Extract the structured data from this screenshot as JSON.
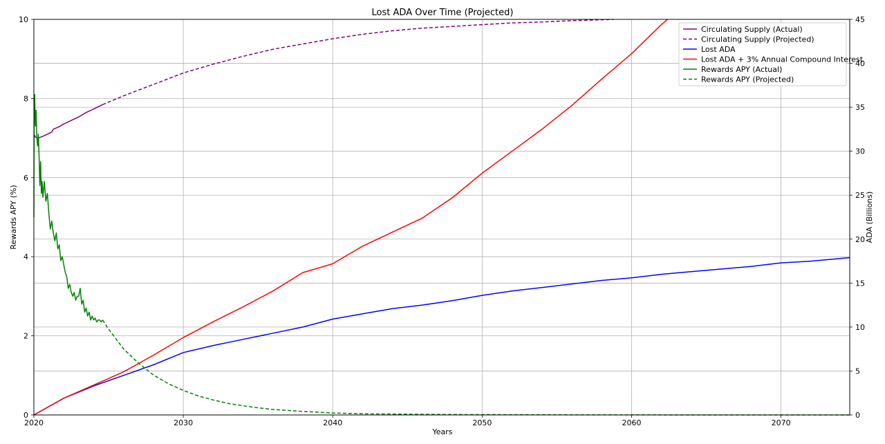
{
  "chart_data": {
    "type": "line",
    "title": "Lost ADA Over Time (Projected)",
    "xlabel": "Years",
    "ylabel_left": "Rewards APY (%)",
    "ylabel_right": "ADA (Billions)",
    "xlim": [
      2020,
      2074.6
    ],
    "ylim_left": [
      0,
      10
    ],
    "ylim_right": [
      0,
      45
    ],
    "x_ticks": [
      "2020",
      "2030",
      "2040",
      "2050",
      "2060",
      "2070"
    ],
    "x_tick_values": [
      2020,
      2030,
      2040,
      2050,
      2060,
      2070
    ],
    "y_left_ticks": [
      "0",
      "2",
      "4",
      "6",
      "8",
      "10"
    ],
    "y_left_tick_values": [
      0,
      2,
      4,
      6,
      8,
      10
    ],
    "y_right_ticks": [
      "0",
      "5",
      "10",
      "15",
      "20",
      "25",
      "30",
      "35",
      "40",
      "45"
    ],
    "y_right_tick_values": [
      0,
      5,
      10,
      15,
      20,
      25,
      30,
      35,
      40,
      45
    ],
    "grid": true,
    "legend_position": "top-right",
    "series": [
      {
        "name": "Circulating Supply (Actual)",
        "axis": "right",
        "color": "#800080",
        "style": "solid",
        "x": [
          2020.0,
          2020.05,
          2020.1,
          2020.3,
          2020.6,
          2021.0,
          2021.2,
          2021.3,
          2021.7,
          2022.0,
          2022.5,
          2023.0,
          2023.5,
          2024.0,
          2024.6
        ],
        "y": [
          31.6,
          31.8,
          31.6,
          31.5,
          31.7,
          32.0,
          32.2,
          32.5,
          32.8,
          33.1,
          33.5,
          33.9,
          34.4,
          34.8,
          35.3
        ]
      },
      {
        "name": "Circulating Supply (Projected)",
        "axis": "right",
        "color": "#800080",
        "style": "dashed",
        "x": [
          2024.6,
          2026,
          2028,
          2030,
          2032,
          2034,
          2036,
          2038,
          2040,
          2042,
          2044,
          2046,
          2048,
          2050,
          2052,
          2054,
          2056,
          2058,
          2058.8
        ],
        "y": [
          35.3,
          36.3,
          37.6,
          38.9,
          39.9,
          40.8,
          41.6,
          42.2,
          42.8,
          43.3,
          43.7,
          44.0,
          44.2,
          44.4,
          44.6,
          44.7,
          44.85,
          44.95,
          45.0
        ]
      },
      {
        "name": "Lost ADA",
        "axis": "right",
        "color": "#0000ff",
        "style": "solid",
        "x": [
          2020,
          2022,
          2024,
          2026,
          2028,
          2030,
          2032,
          2034,
          2036,
          2038,
          2040,
          2042,
          2044,
          2046,
          2048,
          2050,
          2052,
          2054,
          2056,
          2058,
          2060,
          2062,
          2064,
          2066,
          2068,
          2070,
          2072,
          2074.6
        ],
        "y": [
          0,
          1.9,
          3.3,
          4.5,
          5.7,
          7.1,
          7.9,
          8.6,
          9.3,
          10.0,
          10.9,
          11.5,
          12.1,
          12.5,
          13.0,
          13.6,
          14.1,
          14.5,
          14.9,
          15.3,
          15.6,
          16.0,
          16.3,
          16.6,
          16.9,
          17.3,
          17.5,
          17.9
        ]
      },
      {
        "name": "Lost ADA + 3% Annual Compound Interest",
        "axis": "right",
        "color": "#ff0000",
        "style": "solid",
        "x": [
          2020,
          2022,
          2024,
          2026,
          2028,
          2030,
          2032,
          2034,
          2036,
          2038,
          2040,
          2042,
          2044,
          2046,
          2048,
          2050,
          2052,
          2054,
          2056,
          2058,
          2060,
          2062,
          2062.4
        ],
        "y": [
          0,
          1.9,
          3.4,
          4.9,
          6.8,
          8.8,
          10.6,
          12.3,
          14.1,
          16.2,
          17.2,
          19.2,
          20.8,
          22.4,
          24.7,
          27.5,
          30.0,
          32.5,
          35.2,
          38.2,
          41.1,
          44.4,
          45.0
        ]
      },
      {
        "name": "Rewards APY (Actual)",
        "axis": "left",
        "color": "#008000",
        "style": "solid",
        "x": [
          2020.0,
          2020.02,
          2020.05,
          2020.1,
          2020.15,
          2020.2,
          2020.25,
          2020.3,
          2020.35,
          2020.4,
          2020.45,
          2020.5,
          2020.55,
          2020.6,
          2020.65,
          2020.7,
          2020.8,
          2020.9,
          2021.0,
          2021.1,
          2021.2,
          2021.3,
          2021.4,
          2021.5,
          2021.6,
          2021.7,
          2021.8,
          2021.9,
          2022.0,
          2022.1,
          2022.2,
          2022.3,
          2022.4,
          2022.5,
          2022.6,
          2022.7,
          2022.8,
          2022.9,
          2023.0,
          2023.1,
          2023.2,
          2023.3,
          2023.4,
          2023.5,
          2023.6,
          2023.7,
          2023.8,
          2023.9,
          2024.0,
          2024.1,
          2024.2,
          2024.3,
          2024.4,
          2024.5,
          2024.6
        ],
        "y": [
          5.0,
          7.8,
          8.1,
          7.3,
          7.7,
          7.0,
          6.8,
          7.1,
          6.5,
          5.8,
          6.4,
          5.6,
          5.9,
          5.5,
          5.7,
          5.9,
          5.4,
          5.6,
          5.1,
          4.7,
          4.9,
          4.6,
          4.4,
          4.6,
          4.2,
          4.3,
          3.9,
          4.0,
          3.8,
          3.6,
          3.5,
          3.2,
          3.3,
          3.1,
          3.0,
          3.1,
          2.9,
          3.0,
          3.0,
          3.2,
          2.8,
          2.9,
          2.6,
          2.7,
          2.5,
          2.6,
          2.4,
          2.5,
          2.4,
          2.45,
          2.35,
          2.4,
          2.4,
          2.35,
          2.4
        ]
      },
      {
        "name": "Rewards APY (Projected)",
        "axis": "left",
        "color": "#008000",
        "style": "dashed",
        "x": [
          2024.6,
          2025,
          2026,
          2027,
          2028,
          2029,
          2030,
          2031,
          2032,
          2033,
          2034,
          2035,
          2036,
          2038,
          2040,
          2042,
          2045,
          2048,
          2050,
          2055,
          2060,
          2065,
          2070,
          2074.6
        ],
        "y": [
          2.4,
          2.17,
          1.67,
          1.31,
          1.01,
          0.79,
          0.62,
          0.48,
          0.38,
          0.29,
          0.23,
          0.18,
          0.14,
          0.09,
          0.05,
          0.03,
          0.02,
          0.01,
          0.008,
          0.003,
          0.001,
          0.0005,
          0.0002,
          0.0001
        ]
      }
    ]
  }
}
